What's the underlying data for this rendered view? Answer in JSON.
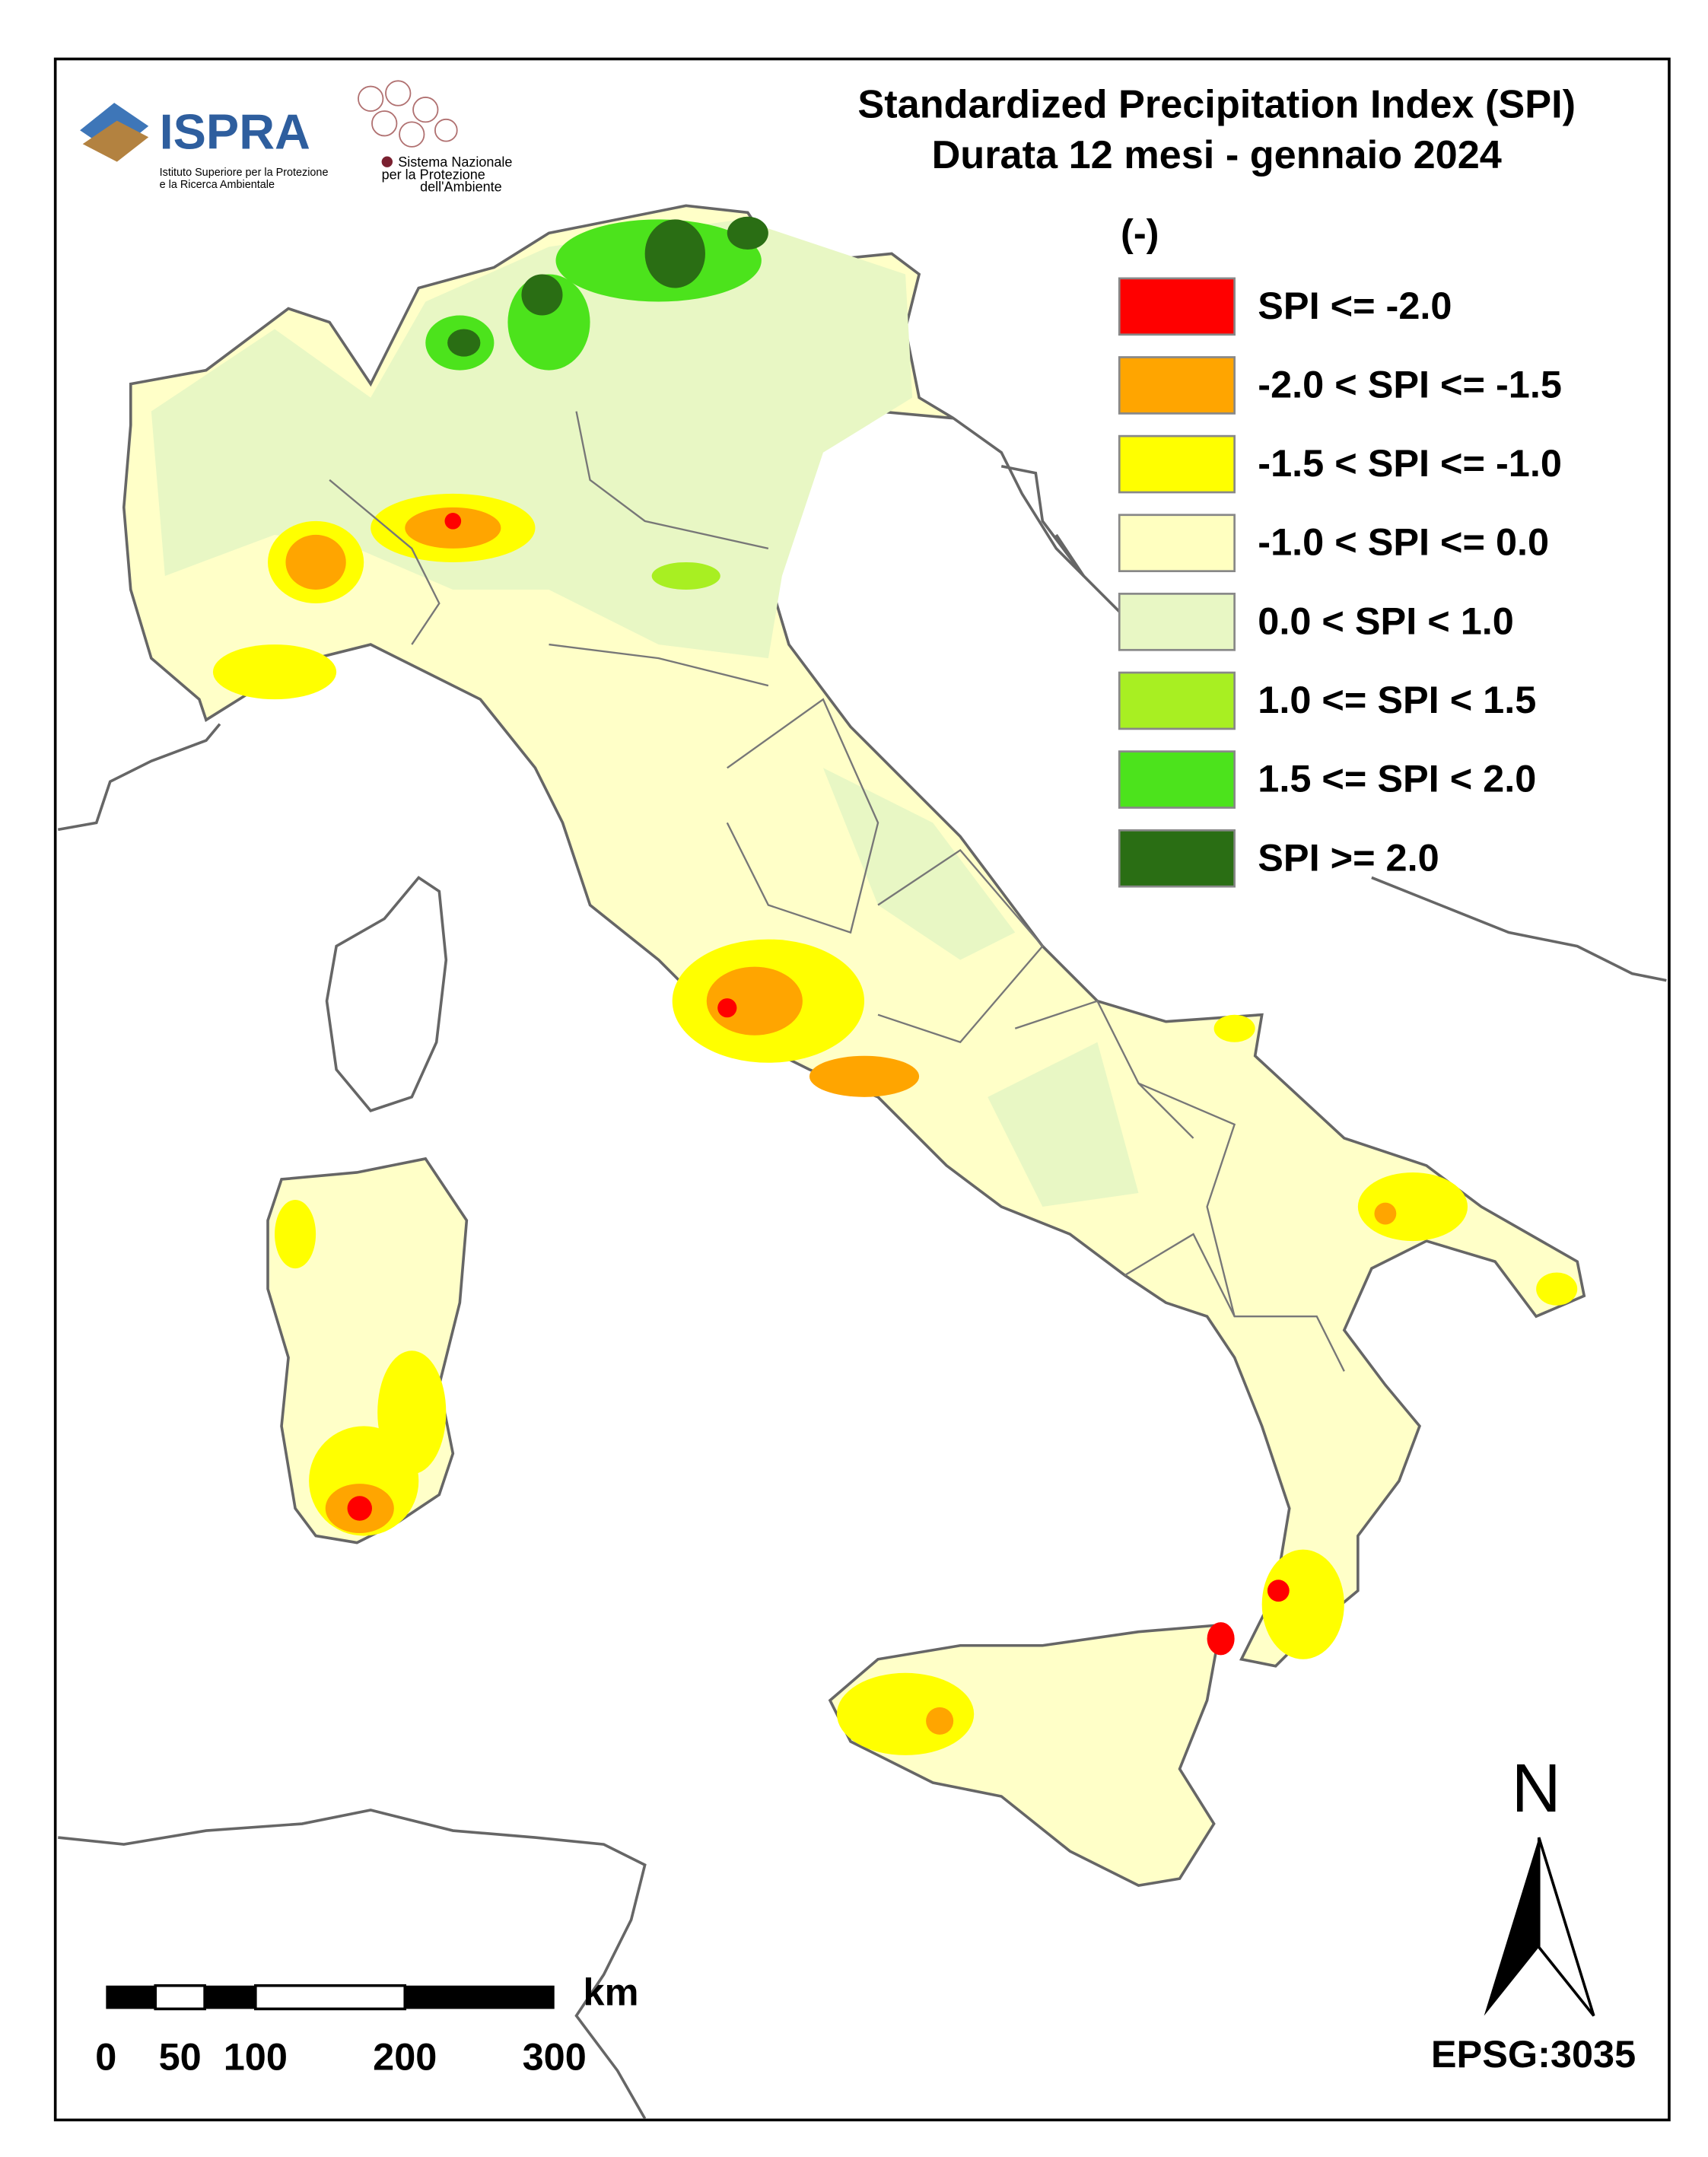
{
  "header": {
    "title_line1": "Standardized Precipitation  Index (SPI)",
    "title_line2": "Durata 12 mesi - gennaio 2024"
  },
  "logos": {
    "ispra": "ISPRA",
    "ispra_sub1": "Istituto Superiore per la Protezione",
    "ispra_sub2": "e la Ricerca Ambientale",
    "snpa1": "Sistema Nazionale",
    "snpa2": "per la Protezione",
    "snpa3": "dell'Ambiente"
  },
  "legend": {
    "title": "(-)",
    "items": [
      {
        "label": "SPI <= -2.0",
        "color": "#ff0000"
      },
      {
        "label": "-2.0 < SPI <= -1.5",
        "color": "#ffa500"
      },
      {
        "label": "-1.5 < SPI <= -1.0",
        "color": "#ffff00"
      },
      {
        "label": "-1.0 < SPI <= 0.0",
        "color": "#ffffc0"
      },
      {
        "label": "0.0 < SPI < 1.0",
        "color": "#e8f7c4"
      },
      {
        "label": "1.0 <= SPI < 1.5",
        "color": "#a8ef22"
      },
      {
        "label": "1.5 <= SPI < 2.0",
        "color": "#4ce31c"
      },
      {
        "label": "SPI >= 2.0",
        "color": "#2a6e14"
      }
    ]
  },
  "scale_bar": {
    "unit": "km",
    "labels": [
      "0",
      "50",
      "100",
      "200",
      "300"
    ]
  },
  "north": "N",
  "projection": "EPSG:3035"
}
